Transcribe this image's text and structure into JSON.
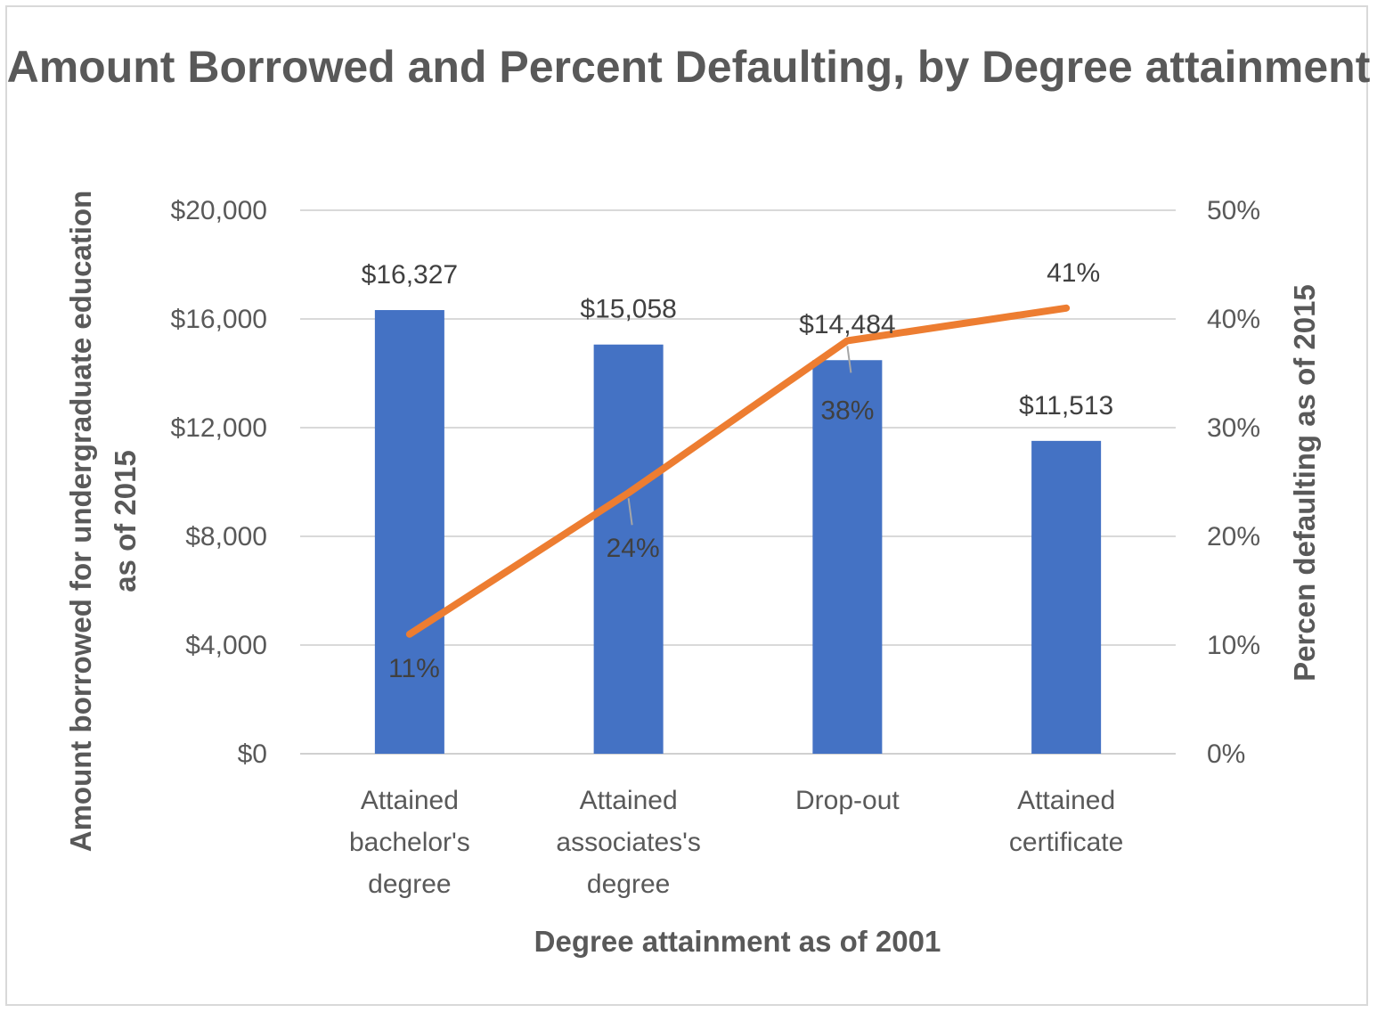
{
  "chart_data": {
    "type": "bar",
    "title": "Amount Borrowed and Percent Defaulting, by Degree attainment",
    "xlabel": "Degree attainment as of 2001",
    "ylabel": "Amount borrowed for undergraduate education as of 2015",
    "y2label": "Percen defaulting as of 2015",
    "categories": [
      [
        "Attained",
        "bachelor's",
        "degree"
      ],
      [
        "Attained",
        "associates's",
        "degree"
      ],
      [
        "Drop-out"
      ],
      [
        "Attained",
        "certificate"
      ]
    ],
    "series": [
      {
        "type": "bar",
        "axis": "left",
        "color": "#4472c4",
        "values": [
          16327,
          15058,
          14484,
          11513
        ],
        "labels": [
          "$16,327",
          "$15,058",
          "$14,484",
          "$11,513"
        ]
      },
      {
        "type": "line",
        "axis": "right",
        "color": "#ed7d31",
        "values": [
          11,
          24,
          38,
          41
        ],
        "labels": [
          "11%",
          "24%",
          "38%",
          "41%"
        ]
      }
    ],
    "ylim": [
      0,
      20000
    ],
    "y2lim": [
      0,
      50
    ],
    "yticks": [
      "$0",
      "$4,000",
      "$8,000",
      "$12,000",
      "$16,000",
      "$20,000"
    ],
    "y2ticks": [
      "0%",
      "10%",
      "20%",
      "30%",
      "40%",
      "50%"
    ],
    "grid": true,
    "legend": "none"
  }
}
